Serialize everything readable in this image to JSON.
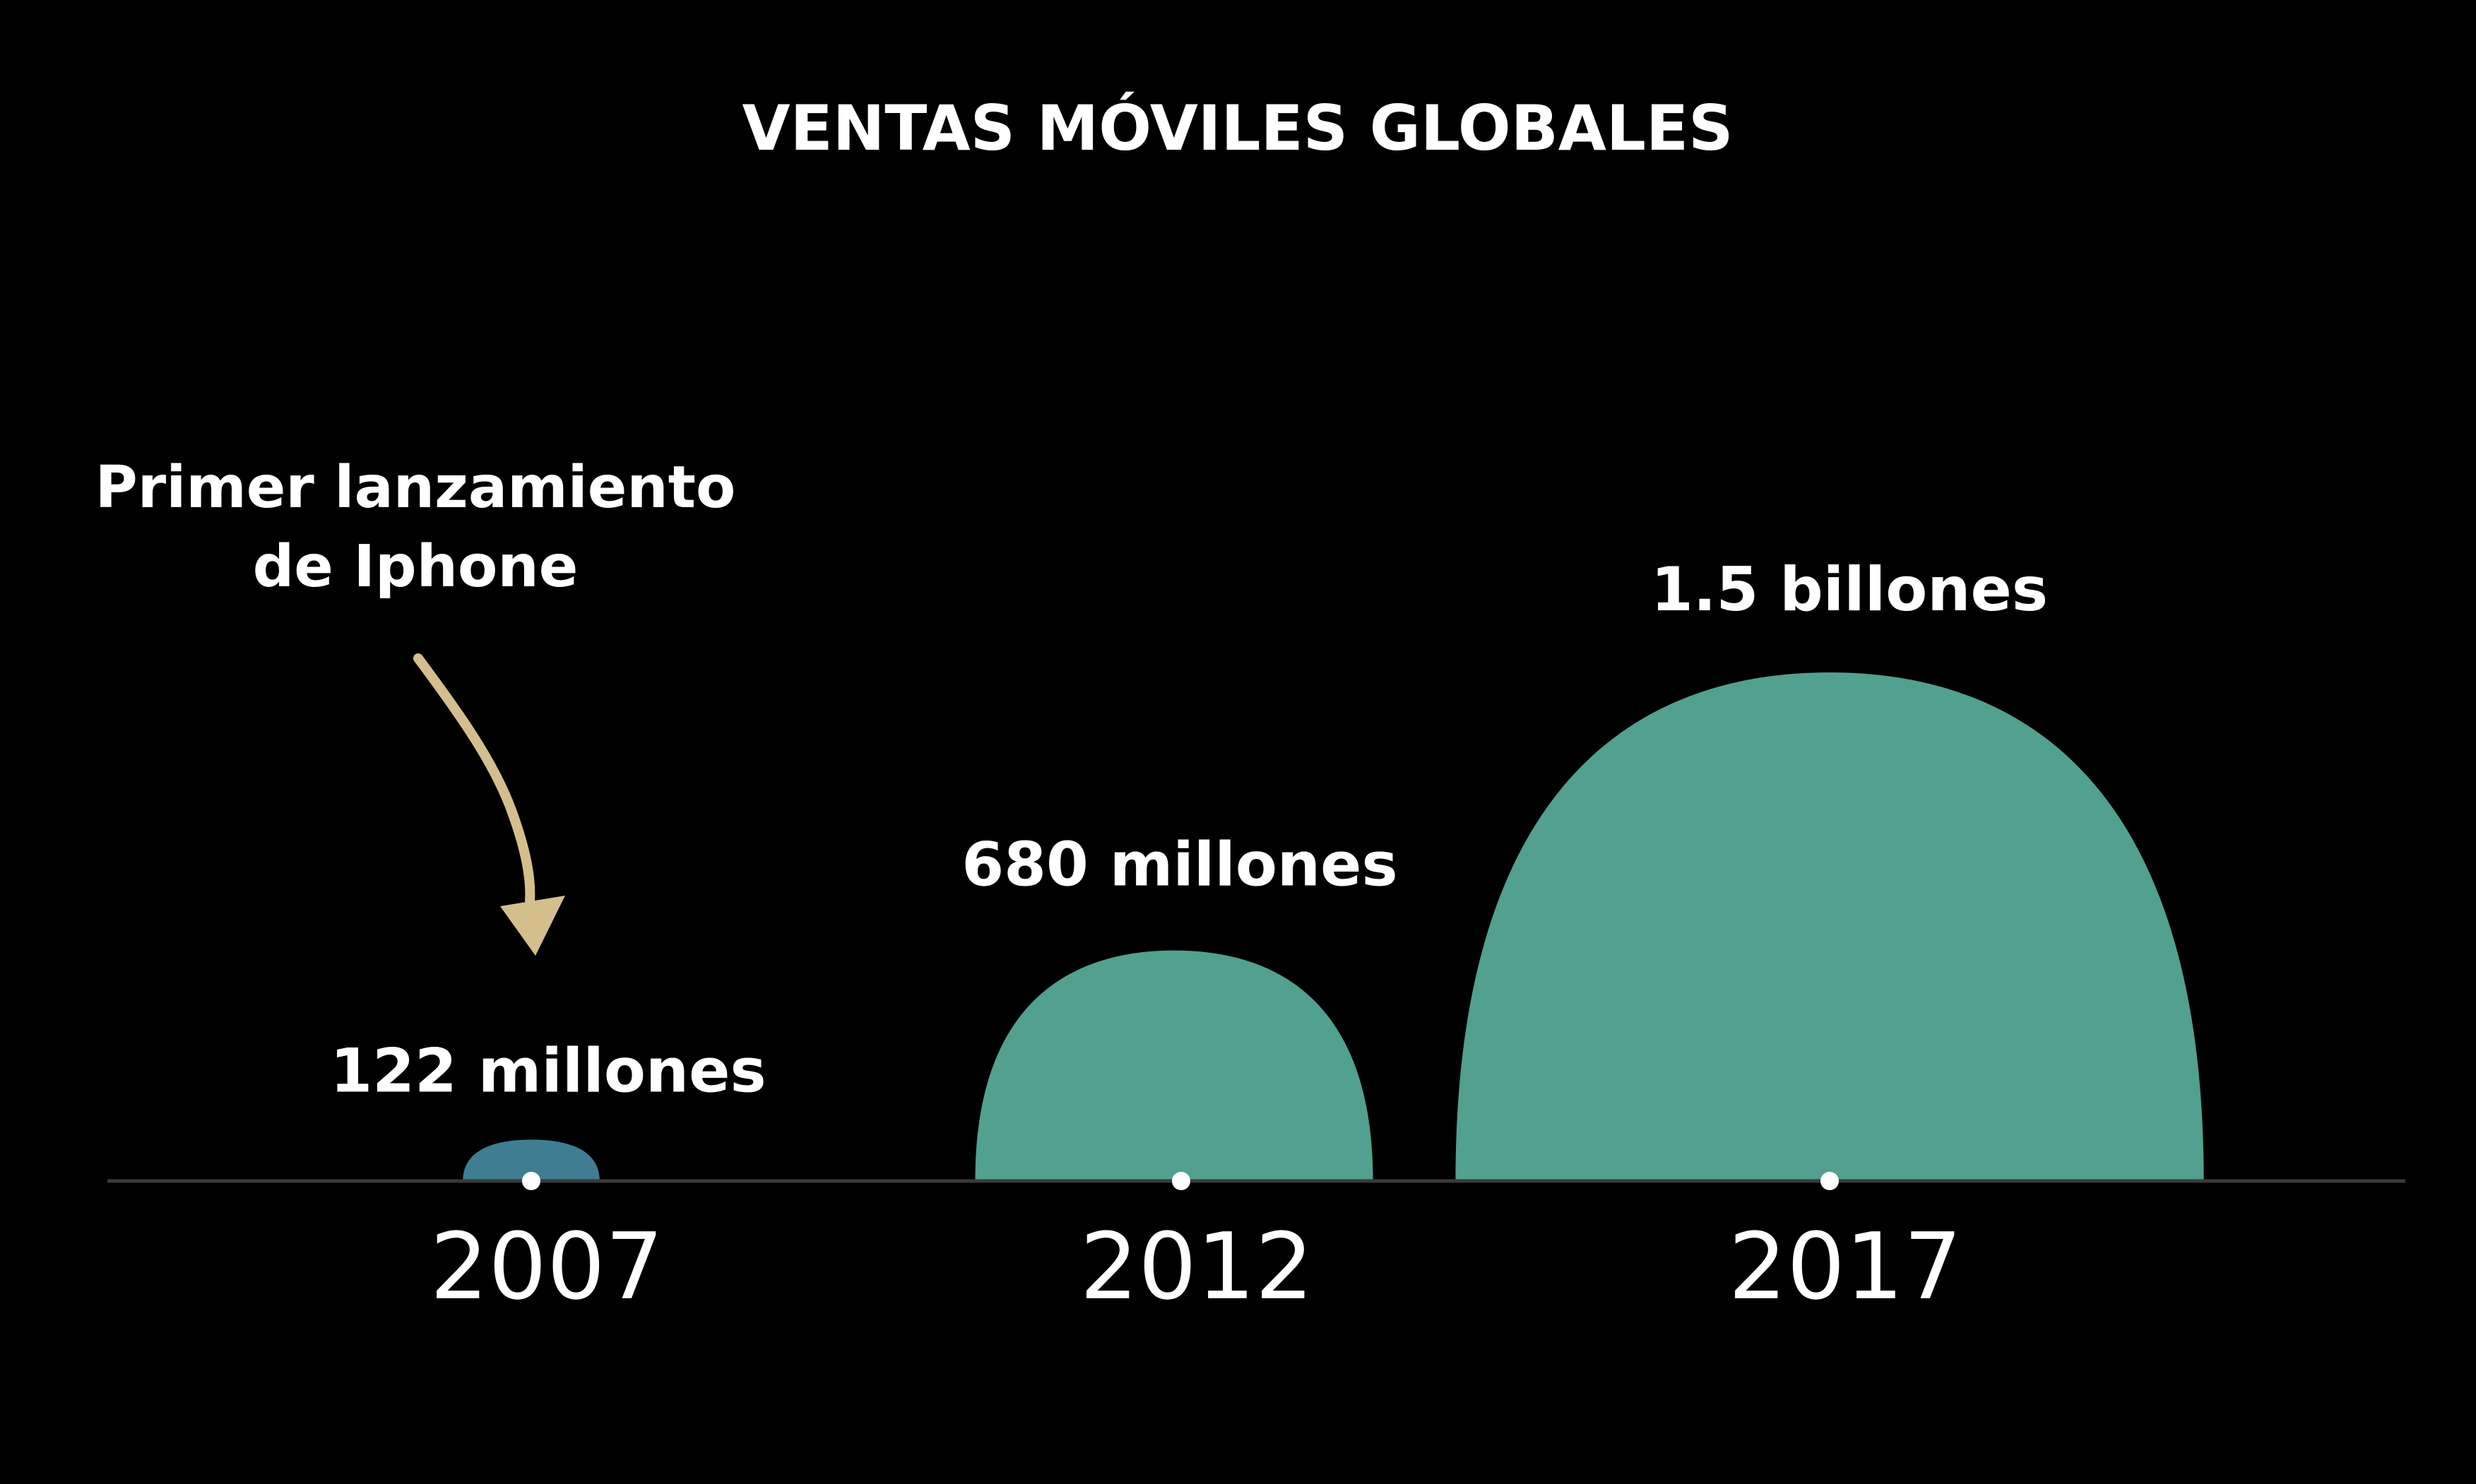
{
  "chart_data": {
    "type": "area",
    "title": "VENTAS MÓVILES GLOBALES",
    "xlabel": "",
    "ylabel": "",
    "grid": false,
    "legend": "none",
    "categories": [
      "2007",
      "2012",
      "2017"
    ],
    "values": [
      122,
      680,
      1500
    ],
    "unit": "millones",
    "data_labels": [
      "122 millones",
      "680 millones",
      "1.5 billones"
    ],
    "annotation": {
      "lines": [
        "Primer lanzamiento",
        "de Iphone"
      ],
      "target": "2007"
    },
    "ylim": [
      0,
      1500
    ]
  },
  "colors": {
    "background": "#000000",
    "bubble_fill": "#52a08f",
    "bubble_small_fill": "#3f7e92",
    "axis_line": "#3a3a3a",
    "arrow": "#d4bf8c",
    "text": "#ffffff"
  }
}
